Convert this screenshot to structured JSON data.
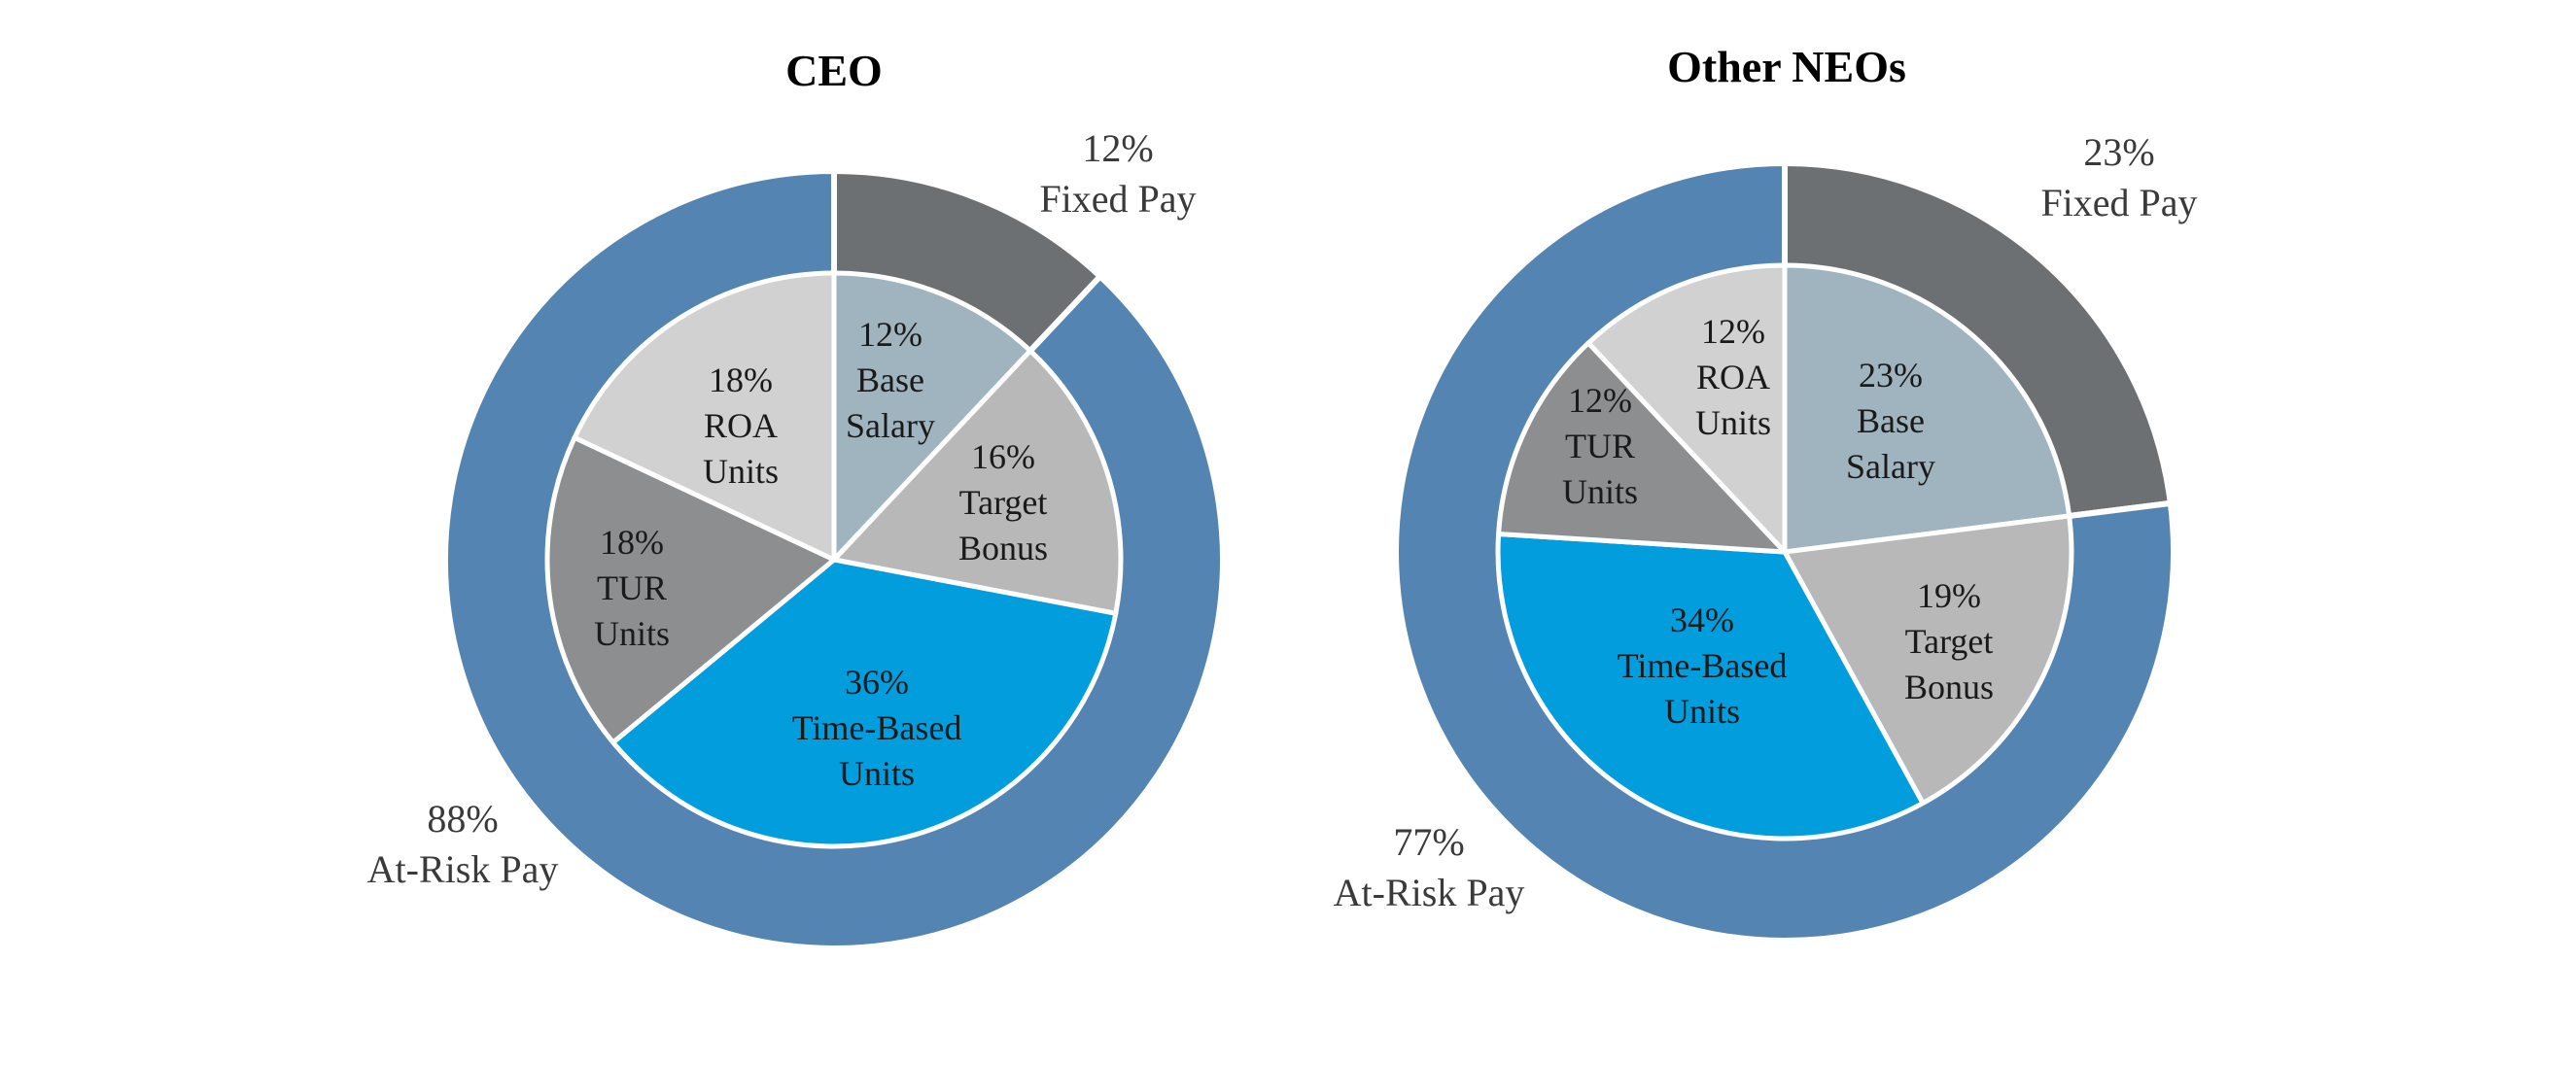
{
  "chart_data": [
    {
      "type": "pie",
      "title": "CEO",
      "outer_ring": [
        {
          "name": "Fixed Pay",
          "value": 12,
          "label_value": "12%",
          "label_name": "Fixed Pay",
          "color": "#6d7073"
        },
        {
          "name": "At-Risk Pay",
          "value": 88,
          "label_value": "88%",
          "label_name": "At-Risk Pay",
          "color": "#5484b1"
        }
      ],
      "inner_pie": [
        {
          "name": "Base Salary",
          "value": 12,
          "lines": [
            "12%",
            "Base",
            "Salary"
          ],
          "color": "#9fb4bf"
        },
        {
          "name": "Target Bonus",
          "value": 16,
          "lines": [
            "16%",
            "Target",
            "Bonus"
          ],
          "color": "#b8b8b9"
        },
        {
          "name": "Time-Based Units",
          "value": 36,
          "lines": [
            "36%",
            "Time-Based",
            "Units"
          ],
          "color": "#029ddc"
        },
        {
          "name": "TUR Units",
          "value": 18,
          "lines": [
            "18%",
            "TUR",
            "Units"
          ],
          "color": "#8c8e90"
        },
        {
          "name": "ROA Units",
          "value": 18,
          "lines": [
            "18%",
            "ROA",
            "Units"
          ],
          "color": "#d1d1d1"
        }
      ]
    },
    {
      "type": "pie",
      "title": "Other NEOs",
      "outer_ring": [
        {
          "name": "Fixed Pay",
          "value": 23,
          "label_value": "23%",
          "label_name": "Fixed Pay",
          "color": "#6d7073"
        },
        {
          "name": "At-Risk Pay",
          "value": 77,
          "label_value": "77%",
          "label_name": "At-Risk Pay",
          "color": "#5484b1"
        }
      ],
      "inner_pie": [
        {
          "name": "Base Salary",
          "value": 23,
          "lines": [
            "23%",
            "Base",
            "Salary"
          ],
          "color": "#9fb4bf"
        },
        {
          "name": "Target Bonus",
          "value": 19,
          "lines": [
            "19%",
            "Target",
            "Bonus"
          ],
          "color": "#b8b8b9"
        },
        {
          "name": "Time-Based Units",
          "value": 34,
          "lines": [
            "34%",
            "Time-Based",
            "Units"
          ],
          "color": "#029ddc"
        },
        {
          "name": "TUR Units",
          "value": 12,
          "lines": [
            "12%",
            "TUR",
            "Units"
          ],
          "color": "#8c8e90"
        },
        {
          "name": "ROA Units",
          "value": 12,
          "lines": [
            "12%",
            "ROA",
            "Units"
          ],
          "color": "#d1d1d1"
        }
      ]
    }
  ]
}
